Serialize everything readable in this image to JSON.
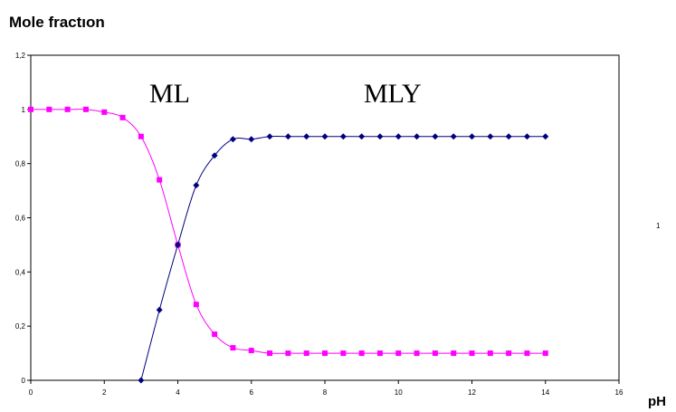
{
  "chart_data": {
    "type": "line",
    "ylabel": "Mole fractıon",
    "xlabel": "pH",
    "xlim": [
      0,
      16
    ],
    "ylim": [
      0,
      1.2
    ],
    "x_ticks": [
      "0",
      "2",
      "4",
      "6",
      "8",
      "10",
      "12",
      "14",
      "16"
    ],
    "y_ticks": [
      "0",
      "0,2",
      "0,4",
      "0,6",
      "0,8",
      "1",
      "1,2"
    ],
    "grid": false,
    "legend": "none",
    "annotations": [
      "ML",
      "MLY"
    ],
    "side_note": "1",
    "series": [
      {
        "color": "#ff00ff",
        "marker": "square",
        "x": [
          0,
          0.5,
          1,
          1.5,
          2,
          2.5,
          3,
          3.5,
          4,
          4.5,
          5,
          5.5,
          6,
          6.5,
          7,
          7.5,
          8,
          8.5,
          9,
          9.5,
          10,
          10.5,
          11,
          11.5,
          12,
          12.5,
          13,
          13.5,
          14
        ],
        "y": [
          1.0,
          1.0,
          1.0,
          1.0,
          0.99,
          0.97,
          0.9,
          0.74,
          0.5,
          0.28,
          0.17,
          0.12,
          0.11,
          0.1,
          0.1,
          0.1,
          0.1,
          0.1,
          0.1,
          0.1,
          0.1,
          0.1,
          0.1,
          0.1,
          0.1,
          0.1,
          0.1,
          0.1,
          0.1
        ]
      },
      {
        "color": "#000080",
        "marker": "diamond",
        "x": [
          3,
          3.5,
          4,
          4.5,
          5,
          5.5,
          6,
          6.5,
          7,
          7.5,
          8,
          8.5,
          9,
          9.5,
          10,
          10.5,
          11,
          11.5,
          12,
          12.5,
          13,
          13.5,
          14
        ],
        "y": [
          0.0,
          0.26,
          0.5,
          0.72,
          0.83,
          0.89,
          0.89,
          0.9,
          0.9,
          0.9,
          0.9,
          0.9,
          0.9,
          0.9,
          0.9,
          0.9,
          0.9,
          0.9,
          0.9,
          0.9,
          0.9,
          0.9,
          0.9
        ]
      }
    ]
  }
}
